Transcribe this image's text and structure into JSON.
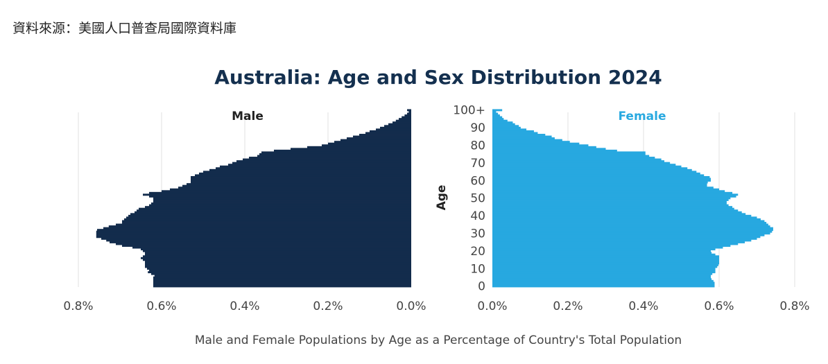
{
  "source": "資料來源：美國人口普查局國際資料庫",
  "chart_data": {
    "type": "bar",
    "orientation": "population-pyramid",
    "title": "Australia: Age and Sex Distribution 2024",
    "xlabel": "Male and Female Populations by Age as a Percentage of Country's Total Population",
    "ylabel": "Age",
    "y_ticks": [
      "0",
      "10",
      "20",
      "30",
      "40",
      "50",
      "60",
      "70",
      "80",
      "90",
      "100+"
    ],
    "x_ticks": [
      "0.0%",
      "0.2%",
      "0.4%",
      "0.6%",
      "0.8%"
    ],
    "xlim": [
      0,
      0.8
    ],
    "ages": "0..100+",
    "colors": {
      "male": "#132c4c",
      "female": "#27a8e0",
      "grid": "#e2e2e2"
    },
    "series": [
      {
        "name": "Male",
        "values": [
          0.62,
          0.62,
          0.62,
          0.62,
          0.62,
          0.62,
          0.617,
          0.625,
          0.633,
          0.63,
          0.635,
          0.64,
          0.64,
          0.64,
          0.64,
          0.645,
          0.65,
          0.645,
          0.64,
          0.64,
          0.645,
          0.65,
          0.67,
          0.695,
          0.71,
          0.725,
          0.733,
          0.745,
          0.757,
          0.757,
          0.757,
          0.757,
          0.755,
          0.74,
          0.727,
          0.71,
          0.695,
          0.695,
          0.69,
          0.685,
          0.68,
          0.675,
          0.665,
          0.66,
          0.655,
          0.64,
          0.63,
          0.625,
          0.62,
          0.62,
          0.62,
          0.63,
          0.645,
          0.63,
          0.6,
          0.58,
          0.56,
          0.55,
          0.54,
          0.53,
          0.53,
          0.53,
          0.53,
          0.52,
          0.51,
          0.5,
          0.485,
          0.47,
          0.46,
          0.44,
          0.43,
          0.42,
          0.405,
          0.39,
          0.37,
          0.365,
          0.36,
          0.33,
          0.29,
          0.25,
          0.215,
          0.2,
          0.185,
          0.17,
          0.155,
          0.14,
          0.125,
          0.11,
          0.1,
          0.085,
          0.075,
          0.065,
          0.055,
          0.045,
          0.037,
          0.03,
          0.023,
          0.016,
          0.01,
          0.006,
          0.01
        ]
      },
      {
        "name": "Female",
        "values": [
          0.588,
          0.588,
          0.588,
          0.585,
          0.58,
          0.578,
          0.578,
          0.582,
          0.59,
          0.59,
          0.59,
          0.595,
          0.598,
          0.6,
          0.6,
          0.6,
          0.6,
          0.6,
          0.59,
          0.58,
          0.578,
          0.59,
          0.61,
          0.63,
          0.65,
          0.668,
          0.685,
          0.7,
          0.709,
          0.72,
          0.735,
          0.74,
          0.743,
          0.743,
          0.735,
          0.73,
          0.725,
          0.72,
          0.71,
          0.7,
          0.685,
          0.67,
          0.66,
          0.65,
          0.64,
          0.635,
          0.625,
          0.62,
          0.62,
          0.625,
          0.63,
          0.645,
          0.65,
          0.635,
          0.615,
          0.6,
          0.585,
          0.568,
          0.568,
          0.57,
          0.578,
          0.578,
          0.575,
          0.56,
          0.55,
          0.54,
          0.528,
          0.516,
          0.5,
          0.485,
          0.47,
          0.455,
          0.447,
          0.43,
          0.415,
          0.405,
          0.405,
          0.33,
          0.3,
          0.275,
          0.254,
          0.23,
          0.205,
          0.185,
          0.165,
          0.157,
          0.14,
          0.12,
          0.11,
          0.09,
          0.075,
          0.07,
          0.06,
          0.054,
          0.04,
          0.03,
          0.026,
          0.02,
          0.015,
          0.01,
          0.026
        ]
      }
    ]
  }
}
